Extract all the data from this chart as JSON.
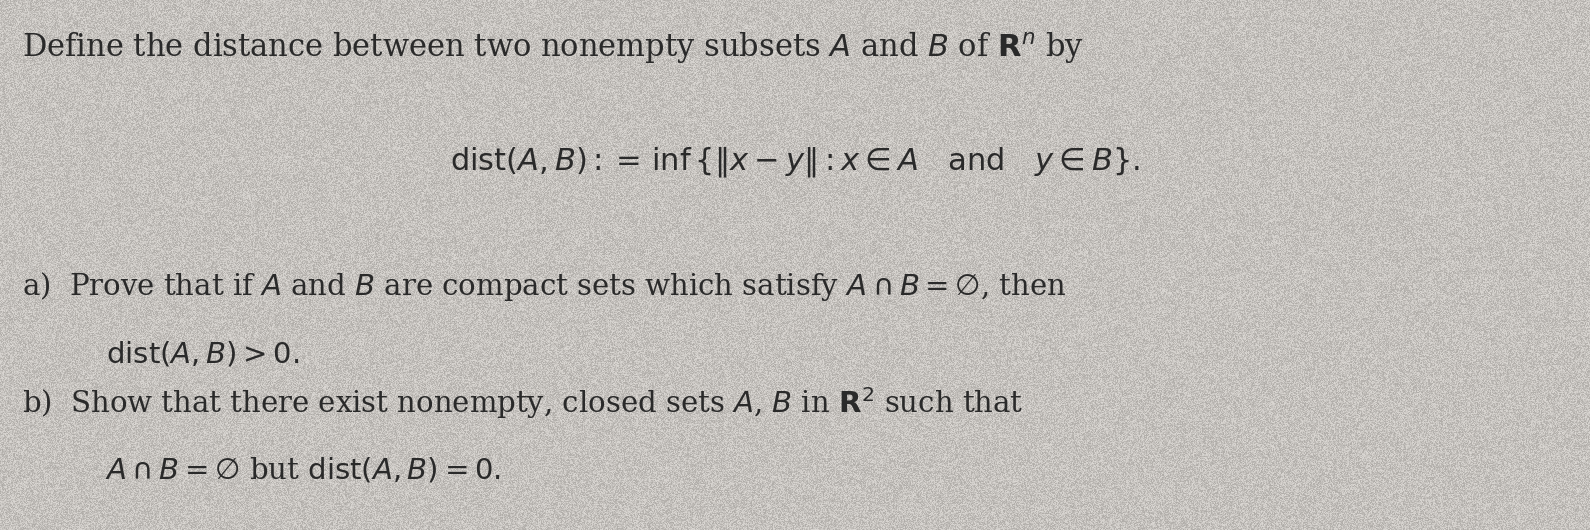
{
  "background_color": "#d4d0cb",
  "text_color": "#2a2a2a",
  "figsize": [
    15.9,
    5.3
  ],
  "dpi": 100,
  "line1": "Define the distance between two nonempty subsets $A$ and $B$ of $\\mathbf{R}^n$ by",
  "line2": "$\\mathrm{dist}(A, B) :=\\, \\inf\\{\\|x - y\\| : x \\in A \\quad \\mathrm{and} \\quad y \\in B\\}.$",
  "line3a": "a)  Prove that if $A$ and $B$ are compact sets which satisfy $A \\cap B = \\emptyset$, then",
  "line3b": "     $\\mathrm{dist}(A, B) > 0.$",
  "line4a": "b)  Show that there exist nonempty, closed sets $A$, $B$ in $\\mathbf{R}^2$ such that",
  "line4b": "     $A \\cap B = \\emptyset$ but $\\mathrm{dist}(A, B) = 0.$",
  "font_size_line1": 22,
  "font_size_formula": 22,
  "font_size_parts": 21,
  "noise_seed": 42,
  "noise_alpha": 0.18
}
